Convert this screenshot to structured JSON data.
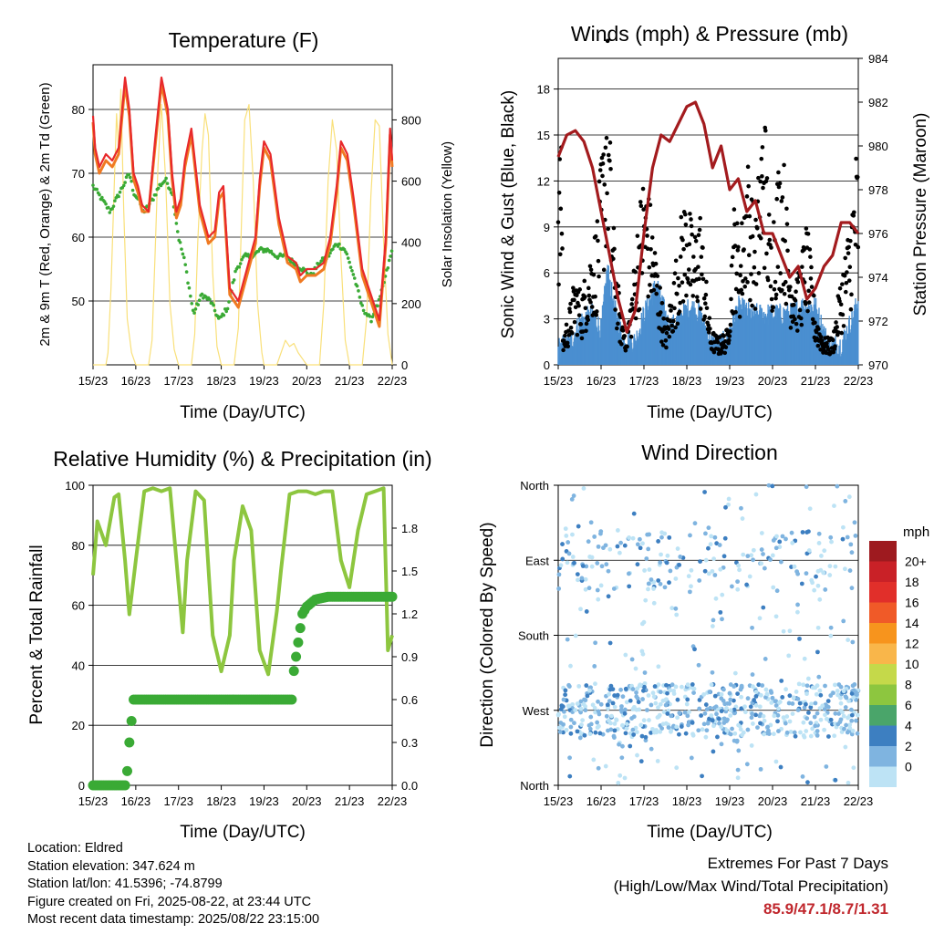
{
  "panels": {
    "temperature": {
      "title": "Temperature (F)",
      "xlabel": "Time (Day/UTC)",
      "ylabel_left": "2m & 9m T (Red, Orange) & 2m Td (Green)",
      "ylabel_right": "Solar Insolation (Yellow)"
    },
    "winds": {
      "title": "Winds (mph) & Pressure (mb)",
      "xlabel": "Time (Day/UTC)",
      "ylabel_left": "Sonic Wind & Gust (Blue, Black)",
      "ylabel_right": "Station Pressure (Maroon)"
    },
    "humidity": {
      "title": "Relative Humidity (%) & Precipitation (in)",
      "xlabel": "Time (Day/UTC)",
      "ylabel_left": "Percent & Total Rainfall"
    },
    "direction": {
      "title": "Wind Direction",
      "xlabel": "Time (Day/UTC)",
      "ylabel_left": "Direction (Colored By Speed)",
      "legend_title": "mph"
    }
  },
  "footer": {
    "location": "Location: Eldred",
    "elevation": "Station elevation: 347.624 m",
    "latlon": "Station lat/lon: 41.5396; -74.8799",
    "created": "Figure created on Fri, 2025-08-22, at 23:44 UTC",
    "recent": "Most recent data timestamp: 2025/08/22 23:15:00",
    "extremes_title": "Extremes For Past 7 Days",
    "extremes_desc": "(High/Low/Max Wind/Total Precipitation)",
    "extremes_values": "85.9/47.1/8.7/1.31"
  },
  "chart_data": [
    {
      "type": "line",
      "title": "Temperature (F)",
      "x_ticks": [
        "15/23",
        "16/23",
        "17/23",
        "18/23",
        "19/23",
        "20/23",
        "21/23",
        "22/23"
      ],
      "y_left": {
        "ylim": [
          40,
          87
        ],
        "ticks": [
          50,
          60,
          70,
          80
        ]
      },
      "y_right": {
        "ylim": [
          0,
          980
        ],
        "ticks": [
          0,
          200,
          400,
          600,
          800
        ]
      },
      "series": [
        {
          "role": "2m T",
          "color": "#e8292b",
          "axis": "left",
          "x": [
            0,
            0.05,
            0.15,
            0.3,
            0.45,
            0.6,
            0.75,
            0.85,
            0.95,
            1.05,
            1.15,
            1.3,
            1.45,
            1.6,
            1.75,
            1.85,
            1.95,
            2.05,
            2.15,
            2.3,
            2.5,
            2.7,
            2.85,
            2.95,
            3.05,
            3.2,
            3.4,
            3.6,
            3.8,
            3.9,
            4.0,
            4.15,
            4.35,
            4.55,
            4.75,
            4.85,
            5.0,
            5.2,
            5.4,
            5.55,
            5.7,
            5.8,
            5.95,
            6.1,
            6.3,
            6.5,
            6.7,
            6.85,
            6.95,
            7.0
          ],
          "values": [
            79,
            74,
            71,
            73,
            72,
            74,
            85,
            80,
            70,
            68,
            65,
            64,
            75,
            85,
            80,
            70,
            64,
            66,
            72,
            77,
            65,
            60,
            61,
            67,
            68,
            52,
            50,
            55,
            60,
            69,
            75,
            73,
            63,
            57,
            56,
            54,
            55,
            55,
            56,
            60,
            68,
            75,
            73,
            66,
            55,
            51,
            47,
            60,
            77,
            72
          ]
        },
        {
          "role": "9m T",
          "color": "#f07a22",
          "axis": "left",
          "x": [
            0,
            0.05,
            0.15,
            0.3,
            0.45,
            0.6,
            0.75,
            0.85,
            0.95,
            1.05,
            1.15,
            1.3,
            1.45,
            1.6,
            1.75,
            1.85,
            1.95,
            2.05,
            2.15,
            2.3,
            2.5,
            2.7,
            2.85,
            2.95,
            3.05,
            3.2,
            3.4,
            3.6,
            3.8,
            3.9,
            4.0,
            4.15,
            4.35,
            4.55,
            4.75,
            4.85,
            5.0,
            5.2,
            5.4,
            5.55,
            5.7,
            5.8,
            5.95,
            6.1,
            6.3,
            6.5,
            6.7,
            6.85,
            6.95,
            7.0
          ],
          "values": [
            78,
            73,
            70,
            72,
            71,
            73,
            84,
            79,
            69,
            67,
            64,
            64,
            74,
            84,
            79,
            69,
            63,
            65,
            71,
            76,
            64,
            59,
            60,
            66,
            67,
            51,
            49,
            54,
            59,
            68,
            74,
            72,
            62,
            56,
            55,
            53,
            54,
            54,
            55,
            59,
            67,
            74,
            72,
            65,
            54,
            50,
            46,
            59,
            76,
            71
          ]
        },
        {
          "role": "2m Td",
          "color": "#3aaa35",
          "axis": "left",
          "x": [
            0,
            0.2,
            0.4,
            0.55,
            0.7,
            0.85,
            0.95,
            1.05,
            1.2,
            1.4,
            1.55,
            1.7,
            1.85,
            2.0,
            2.15,
            2.35,
            2.55,
            2.75,
            2.95,
            3.15,
            3.35,
            3.55,
            3.75,
            3.9,
            4.1,
            4.3,
            4.5,
            4.7,
            4.9,
            5.1,
            5.3,
            5.5,
            5.7,
            5.9,
            6.1,
            6.3,
            6.5,
            6.7,
            6.85,
            7.0
          ],
          "values": [
            68,
            66,
            64,
            66,
            68,
            70,
            67,
            66,
            64,
            66,
            68,
            69,
            67,
            60,
            56,
            48,
            51,
            50,
            47,
            49,
            55,
            57,
            57,
            58,
            58,
            57,
            57,
            56,
            55,
            54,
            56,
            57,
            59,
            58,
            54,
            49,
            47,
            50,
            54,
            58
          ]
        },
        {
          "role": "Solar",
          "color": "#f9e07a",
          "axis": "right",
          "x": [
            0,
            0.3,
            0.35,
            0.42,
            0.5,
            0.55,
            0.6,
            0.65,
            0.72,
            0.8,
            0.9,
            1.0,
            1.3,
            1.38,
            1.45,
            1.52,
            1.6,
            1.7,
            1.8,
            1.9,
            2.0,
            2.3,
            2.38,
            2.45,
            2.55,
            2.62,
            2.7,
            2.8,
            2.9,
            3.0,
            3.3,
            3.4,
            3.48,
            3.55,
            3.65,
            3.75,
            3.85,
            3.95,
            4.0,
            4.3,
            4.4,
            4.5,
            4.6,
            4.7,
            4.8,
            4.9,
            5.0,
            5.3,
            5.4,
            5.5,
            5.6,
            5.7,
            5.8,
            5.9,
            6.0,
            6.3,
            6.4,
            6.5,
            6.6,
            6.7,
            6.8,
            6.9,
            7.0
          ],
          "values": [
            0,
            0,
            40,
            250,
            600,
            820,
            700,
            900,
            500,
            150,
            40,
            0,
            0,
            80,
            350,
            650,
            850,
            600,
            200,
            50,
            0,
            0,
            100,
            400,
            700,
            820,
            750,
            300,
            60,
            0,
            0,
            120,
            500,
            800,
            850,
            600,
            200,
            40,
            0,
            0,
            40,
            80,
            60,
            70,
            40,
            20,
            0,
            0,
            200,
            600,
            800,
            700,
            350,
            80,
            0,
            0,
            150,
            550,
            800,
            780,
            400,
            100,
            0
          ]
        }
      ]
    },
    {
      "type": "line",
      "title": "Winds (mph) & Pressure (mb)",
      "x_ticks": [
        "15/23",
        "16/23",
        "17/23",
        "18/23",
        "19/23",
        "20/23",
        "21/23",
        "22/23"
      ],
      "y_left": {
        "ylim": [
          0,
          20
        ],
        "ticks": [
          0,
          3,
          6,
          9,
          12,
          15,
          18
        ]
      },
      "y_right": {
        "ylim": [
          970,
          984
        ],
        "ticks": [
          970,
          972,
          974,
          976,
          978,
          980,
          982,
          984
        ]
      },
      "series": [
        {
          "role": "Station Pressure",
          "color": "#a31b1e",
          "axis": "right",
          "x": [
            0,
            0.2,
            0.4,
            0.6,
            0.8,
            1.0,
            1.2,
            1.4,
            1.6,
            1.8,
            2.0,
            2.2,
            2.4,
            2.6,
            2.8,
            3.0,
            3.2,
            3.4,
            3.6,
            3.8,
            4.0,
            4.2,
            4.4,
            4.6,
            4.8,
            5.0,
            5.2,
            5.4,
            5.6,
            5.8,
            6.0,
            6.2,
            6.4,
            6.6,
            6.8,
            7.0
          ],
          "values": [
            979.5,
            980.5,
            980.7,
            980.2,
            979.0,
            977.0,
            975.0,
            973.0,
            971.5,
            972.5,
            976.0,
            979.0,
            980.5,
            980.2,
            981.0,
            981.8,
            982.0,
            981.0,
            979.0,
            980.0,
            978.0,
            978.5,
            977.0,
            977.5,
            976.0,
            976.0,
            975.0,
            974.0,
            974.5,
            973.0,
            973.5,
            974.5,
            975.0,
            976.5,
            976.5,
            976.0
          ]
        },
        {
          "role": "Sonic Wind",
          "color": "#4a8fd0",
          "axis": "left",
          "x": [
            0,
            0.3,
            0.5,
            0.8,
            1.0,
            1.15,
            1.3,
            1.5,
            1.8,
            2.0,
            2.3,
            2.6,
            2.9,
            3.1,
            3.3,
            3.6,
            3.9,
            4.2,
            4.5,
            4.8,
            5.1,
            5.4,
            5.7,
            6.0,
            6.3,
            6.6,
            6.9,
            7.0
          ],
          "values": [
            0.8,
            1.2,
            2.5,
            3.0,
            2.0,
            6.0,
            3.5,
            1.5,
            1.2,
            3.0,
            5.0,
            2.0,
            3.0,
            3.5,
            3.0,
            1.0,
            1.2,
            3.5,
            3.0,
            3.0,
            3.0,
            3.0,
            3.5,
            3.5,
            1.0,
            1.0,
            3.0,
            4.0
          ]
        },
        {
          "role": "Gust",
          "color": "#000000",
          "axis": "left",
          "type": "scatter",
          "x": [
            0.1,
            0.25,
            0.4,
            0.55,
            0.7,
            0.9,
            1.05,
            1.15,
            1.25,
            1.45,
            1.6,
            1.75,
            1.85,
            2.0,
            2.15,
            2.3,
            2.5,
            2.7,
            2.85,
            3.0,
            3.15,
            3.3,
            3.55,
            3.75,
            3.95,
            4.1,
            4.25,
            4.4,
            4.6,
            4.8,
            4.95,
            5.1,
            5.25,
            5.4,
            5.6,
            5.8,
            6.0,
            6.2,
            6.4,
            6.6,
            6.8,
            6.95
          ],
          "values": [
            1.5,
            3,
            5,
            4,
            6,
            8,
            13,
            18.5,
            9,
            3,
            2,
            5,
            8,
            11,
            9,
            6,
            2,
            5,
            8,
            10,
            7,
            9,
            2,
            1.5,
            2,
            9,
            7,
            12,
            8,
            15.5,
            7,
            11,
            12,
            6,
            5,
            8,
            3,
            1.5,
            1.5,
            5,
            8,
            12
          ]
        }
      ]
    },
    {
      "type": "line",
      "title": "Relative Humidity (%) & Precipitation (in)",
      "x_ticks": [
        "15/23",
        "16/23",
        "17/23",
        "18/23",
        "19/23",
        "20/23",
        "21/23",
        "22/23"
      ],
      "y_left": {
        "ylim": [
          0,
          100
        ],
        "ticks": [
          0,
          20,
          40,
          60,
          80,
          100
        ]
      },
      "y_right": {
        "ylim": [
          0,
          2.1
        ],
        "ticks": [
          0.0,
          0.3,
          0.6,
          0.9,
          1.2,
          1.5,
          1.8
        ]
      },
      "series": [
        {
          "role": "Relative Humidity",
          "color": "#8dc63f",
          "axis": "left",
          "x": [
            0,
            0.1,
            0.3,
            0.5,
            0.6,
            0.75,
            0.85,
            1.0,
            1.2,
            1.4,
            1.6,
            1.8,
            1.95,
            2.1,
            2.2,
            2.4,
            2.6,
            2.8,
            3.0,
            3.2,
            3.3,
            3.5,
            3.7,
            3.9,
            4.1,
            4.3,
            4.4,
            4.6,
            4.8,
            5.0,
            5.2,
            5.4,
            5.6,
            5.8,
            6.0,
            6.2,
            6.4,
            6.6,
            6.8,
            6.9,
            7.0
          ],
          "values": [
            70,
            88,
            80,
            96,
            97,
            75,
            57,
            75,
            98,
            99,
            98,
            99,
            75,
            51,
            75,
            98,
            95,
            50,
            38,
            50,
            75,
            93,
            85,
            45,
            37,
            58,
            72,
            97,
            98,
            98,
            97,
            98,
            98,
            75,
            66,
            85,
            97,
            98,
            99,
            45,
            50
          ]
        },
        {
          "role": "Total Precipitation",
          "color": "#3aaa35",
          "axis": "right",
          "x": [
            0,
            0.2,
            0.5,
            0.75,
            0.8,
            0.85,
            0.9,
            0.95,
            1.0,
            1.5,
            2.0,
            3.0,
            4.0,
            4.5,
            4.65,
            4.7,
            4.8,
            4.9,
            5.0,
            5.2,
            5.5,
            6.0,
            6.5,
            7.0
          ],
          "values": [
            0.0,
            0.0,
            0.0,
            0.0,
            0.1,
            0.3,
            0.45,
            0.6,
            0.6,
            0.6,
            0.6,
            0.6,
            0.6,
            0.6,
            0.6,
            0.8,
            1.0,
            1.2,
            1.25,
            1.3,
            1.32,
            1.32,
            1.32,
            1.32
          ]
        }
      ]
    },
    {
      "type": "scatter",
      "title": "Wind Direction",
      "x_ticks": [
        "15/23",
        "16/23",
        "17/23",
        "18/23",
        "19/23",
        "20/23",
        "21/23",
        "22/23"
      ],
      "y_ticks": [
        "North",
        "West",
        "South",
        "East",
        "North"
      ],
      "legend": {
        "title": "mph",
        "labels": [
          "20+",
          "18",
          "16",
          "14",
          "12",
          "10",
          "8",
          "6",
          "4",
          "2",
          "0"
        ],
        "colors": [
          "#9e1a1f",
          "#c92127",
          "#e12f2a",
          "#f05a28",
          "#f7941d",
          "#f9b64a",
          "#c5d94a",
          "#8dc63f",
          "#4aa56a",
          "#3d7fc1",
          "#7fb4e0",
          "#bde3f5"
        ]
      }
    }
  ]
}
